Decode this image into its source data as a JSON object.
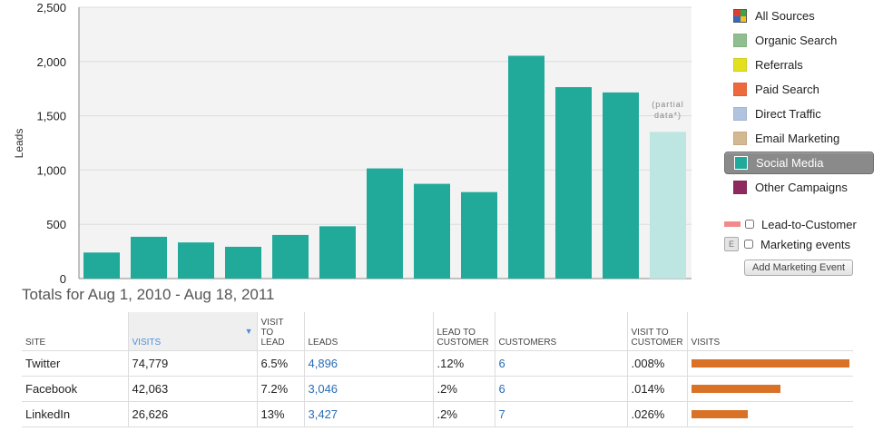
{
  "chart_data": {
    "type": "bar",
    "ylabel": "Leads",
    "ylim": [
      0,
      2500
    ],
    "yticks": [
      "2,500",
      "2,000",
      "1,500",
      "1,000",
      "500",
      "0"
    ],
    "values": [
      240,
      385,
      333,
      293,
      402,
      482,
      1015,
      873,
      797,
      2053,
      1764,
      1715,
      1352
    ],
    "partial_index": 12,
    "partial_label_line1": "(partial",
    "partial_label_line2": "data*)",
    "colors": {
      "bar": "#21a99a",
      "partial": "#bde6e3",
      "plot_bg": "#f3f3f3"
    }
  },
  "legend": {
    "items": [
      {
        "label": "All Sources",
        "color": "multi",
        "selected": false
      },
      {
        "label": "Organic Search",
        "color": "#8fbf8f",
        "selected": false
      },
      {
        "label": "Referrals",
        "color": "#e2e021",
        "selected": false
      },
      {
        "label": "Paid Search",
        "color": "#ee6a3c",
        "selected": false
      },
      {
        "label": "Direct Traffic",
        "color": "#b1c4df",
        "selected": false
      },
      {
        "label": "Email Marketing",
        "color": "#d4b891",
        "selected": false
      },
      {
        "label": "Social Media",
        "color": "#21a99a",
        "selected": true
      },
      {
        "label": "Other Campaigns",
        "color": "#8e2a5e",
        "selected": false
      }
    ],
    "multi_colors": [
      "#e33b2e",
      "#3aa840",
      "#2d6bc4",
      "#f0c419"
    ]
  },
  "toggles": {
    "lead_to_customer": "Lead-to-Customer",
    "lead_to_customer_color": "#f28a8a",
    "marketing_events": "Marketing events",
    "marketing_events_icon": "E",
    "add_button": "Add Marketing Event"
  },
  "totals": {
    "title": "Totals for Aug 1, 2010 - Aug 18, 2011",
    "headers": {
      "site": "SITE",
      "visits": "VISITS",
      "visit_to_lead_1": "VISIT",
      "visit_to_lead_2": "TO",
      "visit_to_lead_3": "LEAD",
      "leads": "LEADS",
      "lead_to_customer_1": "LEAD TO",
      "lead_to_customer_2": "CUSTOMER",
      "customers": "CUSTOMERS",
      "visit_to_customer_1": "VISIT TO",
      "visit_to_customer_2": "CUSTOMER",
      "visits_bar": "VISITS"
    },
    "rows": [
      {
        "site": "Twitter",
        "visits": "74,779",
        "visit_to_lead": "6.5%",
        "leads": "4,896",
        "lead_to_customer": ".12%",
        "customers": "6",
        "visit_to_customer": ".008%",
        "bar_fraction": 1.0
      },
      {
        "site": "Facebook",
        "visits": "42,063",
        "visit_to_lead": "7.2%",
        "leads": "3,046",
        "lead_to_customer": ".2%",
        "customers": "6",
        "visit_to_customer": ".014%",
        "bar_fraction": 0.5625
      },
      {
        "site": "LinkedIn",
        "visits": "26,626",
        "visit_to_lead": "13%",
        "leads": "3,427",
        "lead_to_customer": ".2%",
        "customers": "7",
        "visit_to_customer": ".026%",
        "bar_fraction": 0.356
      }
    ]
  }
}
